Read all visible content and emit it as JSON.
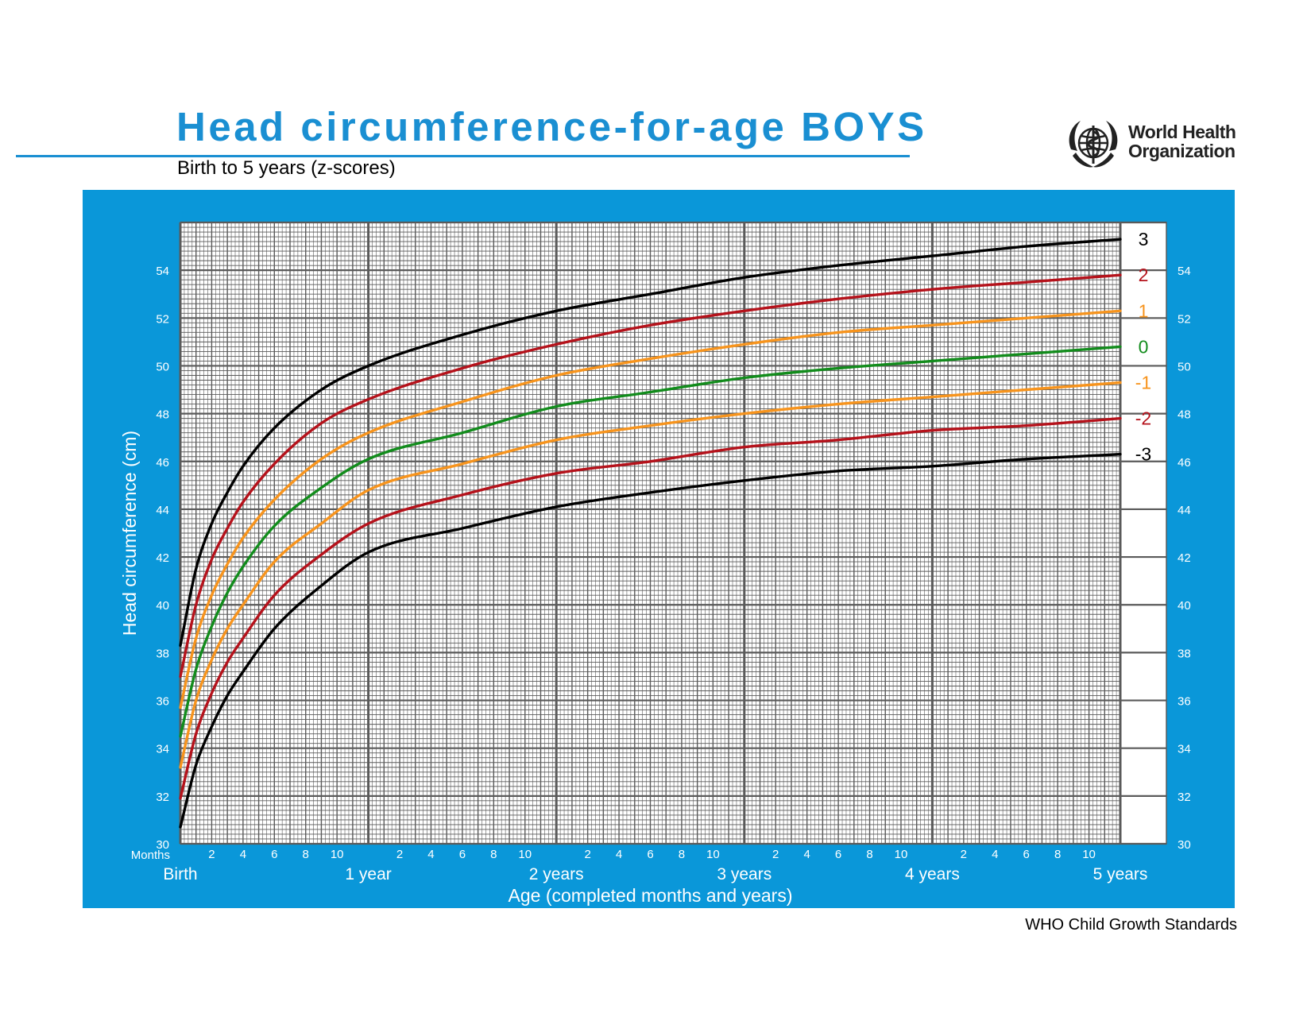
{
  "header": {
    "title": "Head circumference-for-age  BOYS",
    "subtitle": "Birth to 5 years (z-scores)"
  },
  "logo": {
    "icon": "who-emblem-icon",
    "line1": "World Health",
    "line2": "Organization"
  },
  "footer": {
    "text": "WHO Child Growth Standards"
  },
  "colors": {
    "brand_blue": "#0a97d9",
    "title_blue": "#1a8fd2",
    "grid": "#5a5a5a",
    "z3": "#000000",
    "z2": "#b5121b",
    "z1": "#f7941d",
    "z0": "#128c1c"
  },
  "chart_data": {
    "type": "line",
    "title": "Head circumference-for-age  BOYS",
    "subtitle": "Birth to 5 years (z-scores)",
    "xlabel": "Age (completed months and years)",
    "ylabel": "Head circumference (cm)",
    "x_unit_label": "Months",
    "xlim": [
      0,
      60
    ],
    "ylim": [
      30,
      56
    ],
    "grid": true,
    "month_ticks": [
      {
        "x": 2,
        "label": "2"
      },
      {
        "x": 4,
        "label": "4"
      },
      {
        "x": 6,
        "label": "6"
      },
      {
        "x": 8,
        "label": "8"
      },
      {
        "x": 10,
        "label": "10"
      },
      {
        "x": 14,
        "label": "2"
      },
      {
        "x": 16,
        "label": "4"
      },
      {
        "x": 18,
        "label": "6"
      },
      {
        "x": 20,
        "label": "8"
      },
      {
        "x": 22,
        "label": "10"
      },
      {
        "x": 26,
        "label": "2"
      },
      {
        "x": 28,
        "label": "4"
      },
      {
        "x": 30,
        "label": "6"
      },
      {
        "x": 32,
        "label": "8"
      },
      {
        "x": 34,
        "label": "10"
      },
      {
        "x": 38,
        "label": "2"
      },
      {
        "x": 40,
        "label": "4"
      },
      {
        "x": 42,
        "label": "6"
      },
      {
        "x": 44,
        "label": "8"
      },
      {
        "x": 46,
        "label": "10"
      },
      {
        "x": 50,
        "label": "2"
      },
      {
        "x": 52,
        "label": "4"
      },
      {
        "x": 54,
        "label": "6"
      },
      {
        "x": 56,
        "label": "8"
      },
      {
        "x": 58,
        "label": "10"
      }
    ],
    "year_ticks": [
      {
        "x": 0,
        "label": "Birth"
      },
      {
        "x": 12,
        "label": "1 year"
      },
      {
        "x": 24,
        "label": "2 years"
      },
      {
        "x": 36,
        "label": "3 years"
      },
      {
        "x": 48,
        "label": "4 years"
      },
      {
        "x": 60,
        "label": "5 years"
      }
    ],
    "y_ticks": [
      30,
      32,
      34,
      36,
      38,
      40,
      42,
      44,
      46,
      48,
      50,
      52,
      54
    ],
    "x": [
      0,
      1,
      2,
      3,
      4,
      6,
      9,
      12,
      18,
      24,
      30,
      36,
      42,
      48,
      54,
      60
    ],
    "series": [
      {
        "name": "3",
        "color": "#000000",
        "values": [
          38.3,
          41.5,
          43.4,
          44.7,
          45.8,
          47.4,
          49.0,
          50.0,
          51.3,
          52.3,
          53.0,
          53.7,
          54.2,
          54.6,
          55.0,
          55.3
        ]
      },
      {
        "name": "2",
        "color": "#b5121b",
        "values": [
          37.0,
          40.0,
          41.9,
          43.2,
          44.3,
          45.9,
          47.6,
          48.6,
          49.9,
          50.9,
          51.7,
          52.3,
          52.8,
          53.2,
          53.5,
          53.8
        ]
      },
      {
        "name": "1",
        "color": "#f7941d",
        "values": [
          35.7,
          38.6,
          40.4,
          41.7,
          42.8,
          44.4,
          46.1,
          47.2,
          48.5,
          49.6,
          50.3,
          50.9,
          51.4,
          51.7,
          52.0,
          52.3
        ]
      },
      {
        "name": "0",
        "color": "#128c1c",
        "values": [
          34.5,
          37.3,
          39.1,
          40.5,
          41.6,
          43.3,
          44.9,
          46.1,
          47.2,
          48.3,
          48.9,
          49.5,
          49.9,
          50.2,
          50.5,
          50.8
        ]
      },
      {
        "name": "-1",
        "color": "#f7941d",
        "values": [
          33.2,
          36.0,
          37.7,
          39.0,
          40.0,
          41.8,
          43.4,
          44.8,
          45.9,
          46.9,
          47.5,
          48.0,
          48.4,
          48.7,
          49.0,
          49.3
        ]
      },
      {
        "name": "-2",
        "color": "#b5121b",
        "values": [
          31.9,
          34.6,
          36.3,
          37.6,
          38.6,
          40.4,
          42.1,
          43.4,
          44.6,
          45.5,
          46.0,
          46.6,
          46.9,
          47.3,
          47.5,
          47.8
        ]
      },
      {
        "name": "-3",
        "color": "#000000",
        "values": [
          30.7,
          33.3,
          34.9,
          36.2,
          37.2,
          39.0,
          40.8,
          42.2,
          43.2,
          44.1,
          44.7,
          45.2,
          45.6,
          45.8,
          46.1,
          46.3
        ]
      }
    ]
  }
}
